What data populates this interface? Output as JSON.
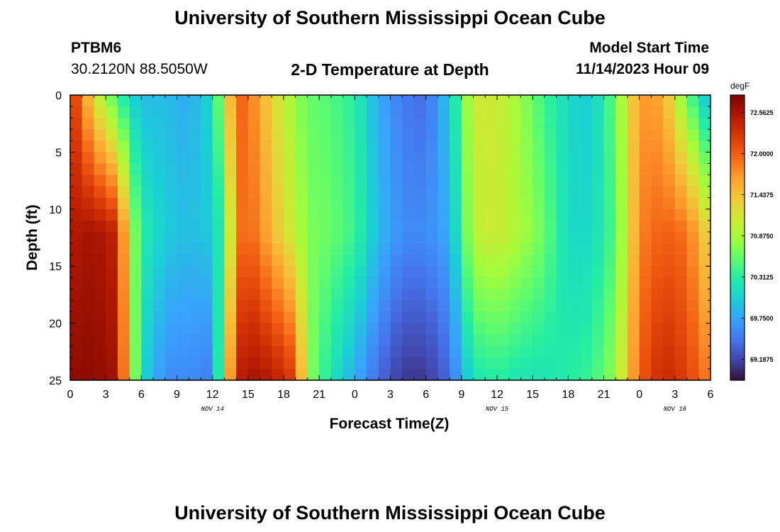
{
  "page": {
    "title": "University of Southern Mississippi Ocean Cube",
    "station_id": "PTBM6",
    "station_coords": "30.2120N  88.5050W",
    "chart_title": "2-D Temperature at Depth",
    "model_start_label": "Model Start Time",
    "model_start_value": "11/14/2023 Hour 09",
    "bottom_title": "University of Southern Mississippi Ocean Cube"
  },
  "chart_data": {
    "type": "heatmap",
    "title": "2-D Temperature at Depth",
    "xlabel": "Forecast Time(Z)",
    "ylabel": "Depth (ft)",
    "x_ticks": [
      "0",
      "3",
      "6",
      "9",
      "12",
      "15",
      "18",
      "21",
      "0",
      "3",
      "6",
      "9",
      "12",
      "15",
      "18",
      "21",
      "0",
      "3",
      "6"
    ],
    "date_labels": [
      {
        "label": "NOV 14",
        "at_hour": 12
      },
      {
        "label": "NOV 15",
        "at_hour": 36
      },
      {
        "label": "NOV 16",
        "at_hour": 51
      }
    ],
    "xlim_hours": [
      0,
      54
    ],
    "y_ticks": [
      0,
      5,
      10,
      15,
      20,
      25
    ],
    "ylim_ft": [
      0,
      25
    ],
    "colorbar": {
      "unit": "degF",
      "vmin": 68.9,
      "vmax": 72.8,
      "tick_labels": [
        "72.5625",
        "72.0000",
        "71.4375",
        "70.8750",
        "70.3125",
        "69.7500",
        "69.1875"
      ],
      "tick_values": [
        72.5625,
        72.0,
        71.4375,
        70.875,
        70.3125,
        69.75,
        69.1875
      ],
      "colormap": [
        "#30123b",
        "#4145ab",
        "#4675ed",
        "#39a2fc",
        "#1bcfd4",
        "#24eca6",
        "#61fc6c",
        "#a4fc3b",
        "#d1e834",
        "#f3c63a",
        "#fe9b2d",
        "#f36315",
        "#d93806",
        "#b11901",
        "#7a0402"
      ]
    },
    "temperature_degF": {
      "description": "Temperature by forecast hour (columns) and depth (surface, 12 ft, 25 ft)",
      "hours": [
        0,
        2,
        4,
        5,
        6,
        8,
        10,
        12,
        13,
        14,
        15,
        17,
        19,
        20,
        22,
        24,
        26,
        28,
        30,
        32,
        34,
        36,
        38,
        40,
        42,
        44,
        46,
        48,
        50,
        52,
        54
      ],
      "surface": [
        72.4,
        71.2,
        70.4,
        70.1,
        69.9,
        69.9,
        69.8,
        70.1,
        71.0,
        72.0,
        71.9,
        71.3,
        70.8,
        70.6,
        70.5,
        70.3,
        69.8,
        69.5,
        69.4,
        70.0,
        71.1,
        71.1,
        70.8,
        70.4,
        70.1,
        70.0,
        70.6,
        71.7,
        71.6,
        70.6,
        69.8
      ],
      "mid": [
        72.5,
        72.6,
        72.4,
        71.0,
        70.3,
        70.0,
        69.9,
        70.0,
        70.4,
        71.8,
        72.0,
        71.5,
        71.0,
        70.7,
        70.6,
        70.4,
        69.9,
        69.6,
        69.6,
        69.8,
        71.0,
        71.1,
        70.9,
        70.6,
        70.1,
        70.1,
        70.5,
        71.8,
        72.0,
        71.9,
        71.2
      ],
      "bottom": [
        72.7,
        72.7,
        72.6,
        71.2,
        70.1,
        69.6,
        69.6,
        69.5,
        71.0,
        72.4,
        72.6,
        72.5,
        72.2,
        70.8,
        70.2,
        69.8,
        69.4,
        69.1,
        69.1,
        69.4,
        70.2,
        70.3,
        70.2,
        70.2,
        70.3,
        70.4,
        70.8,
        72.0,
        72.4,
        72.2,
        71.8
      ]
    }
  }
}
